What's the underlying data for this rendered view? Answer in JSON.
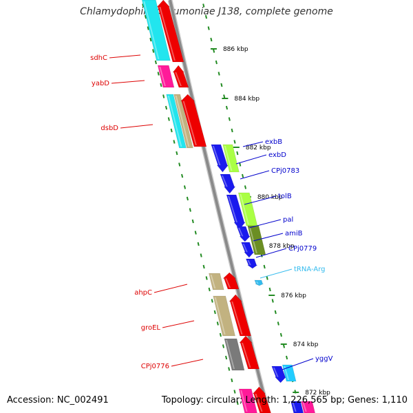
{
  "title": "Chlamydophila pneumoniae J138, complete genome",
  "accession": "Accession: NC_002491",
  "topology": "Topology: circular; Length: 1,226,565 bp; Genes: 1,110",
  "colors": {
    "backbone": "#8a8a8a",
    "tick": "#228b22",
    "forward_label": "#dd0000",
    "reverse_label": "#0000cc",
    "rna_label": "#33bbee"
  },
  "scale_labels": [
    "886 kbp",
    "884 kbp",
    "882 kbp",
    "880 kbp",
    "878 kbp",
    "876 kbp",
    "874 kbp",
    "872 kbp"
  ],
  "gene_labels": [
    {
      "name": "sdhC",
      "strand": "forward",
      "color": "#dd0000"
    },
    {
      "name": "yabD",
      "strand": "forward",
      "color": "#dd0000"
    },
    {
      "name": "dsbD",
      "strand": "forward",
      "color": "#dd0000"
    },
    {
      "name": "exbB",
      "strand": "reverse",
      "color": "#0000cc"
    },
    {
      "name": "exbD",
      "strand": "reverse",
      "color": "#0000cc"
    },
    {
      "name": "CPj0783",
      "strand": "reverse",
      "color": "#0000cc"
    },
    {
      "name": "tolB",
      "strand": "reverse",
      "color": "#0000cc"
    },
    {
      "name": "pal",
      "strand": "reverse",
      "color": "#0000cc"
    },
    {
      "name": "amiB",
      "strand": "reverse",
      "color": "#0000cc"
    },
    {
      "name": "CPj0779",
      "strand": "reverse",
      "color": "#0000cc"
    },
    {
      "name": "tRNA-Arg",
      "strand": "reverse",
      "color": "#33bbee"
    },
    {
      "name": "ahpC",
      "strand": "forward",
      "color": "#dd0000"
    },
    {
      "name": "groEL",
      "strand": "forward",
      "color": "#dd0000"
    },
    {
      "name": "CPj0776",
      "strand": "forward",
      "color": "#dd0000"
    },
    {
      "name": "yggV",
      "strand": "reverse",
      "color": "#0000cc"
    }
  ]
}
